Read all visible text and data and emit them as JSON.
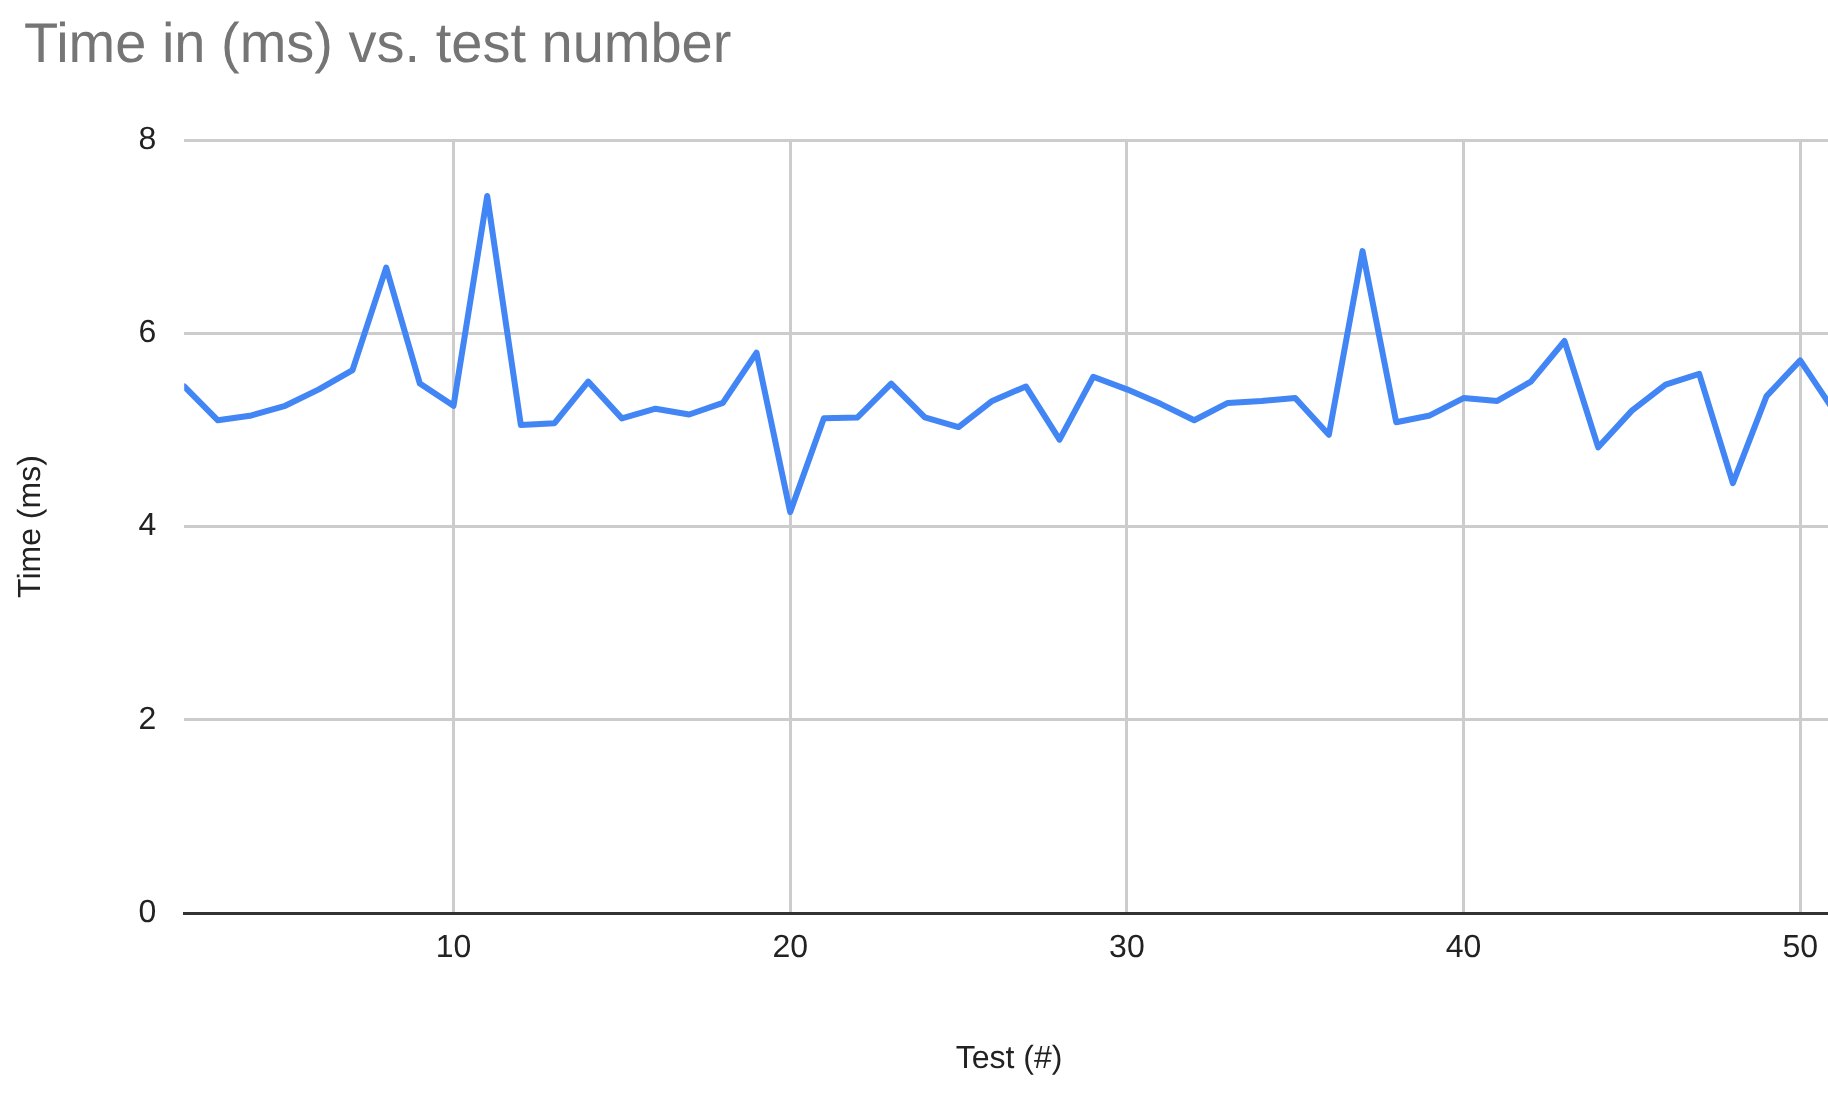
{
  "chart_data": {
    "type": "line",
    "title": "Time in (ms) vs. test number",
    "xlabel": "Test (#)",
    "ylabel": "Time (ms)",
    "x": [
      2,
      3,
      4,
      5,
      6,
      7,
      8,
      9,
      10,
      11,
      12,
      13,
      14,
      15,
      16,
      17,
      18,
      19,
      20,
      21,
      22,
      23,
      24,
      25,
      26,
      27,
      28,
      29,
      30,
      31,
      32,
      33,
      34,
      35,
      36,
      37,
      38,
      39,
      40,
      41,
      42,
      43,
      44,
      45,
      46,
      47,
      48,
      49,
      50,
      51
    ],
    "series": [
      {
        "color": "#4285f4",
        "values": [
          5.45,
          5.1,
          5.15,
          5.25,
          5.42,
          5.62,
          6.68,
          5.48,
          5.25,
          7.42,
          5.05,
          5.07,
          5.5,
          5.12,
          5.22,
          5.16,
          5.28,
          5.8,
          4.15,
          5.12,
          5.13,
          5.48,
          5.13,
          5.03,
          5.3,
          5.45,
          4.9,
          5.55,
          5.42,
          5.27,
          5.1,
          5.28,
          5.3,
          5.33,
          4.95,
          6.85,
          5.08,
          5.15,
          5.33,
          5.3,
          5.5,
          5.92,
          4.82,
          5.2,
          5.47,
          5.58,
          4.45,
          5.35,
          5.72,
          5.2
        ]
      }
    ],
    "xlim": [
      2,
      51
    ],
    "xticks": [
      10,
      20,
      30,
      40,
      50
    ],
    "ylim": [
      0,
      8
    ],
    "yticks": [
      0,
      2,
      4,
      6,
      8
    ],
    "grid": true,
    "legend": false,
    "marker": "none",
    "line_style": "solid"
  }
}
